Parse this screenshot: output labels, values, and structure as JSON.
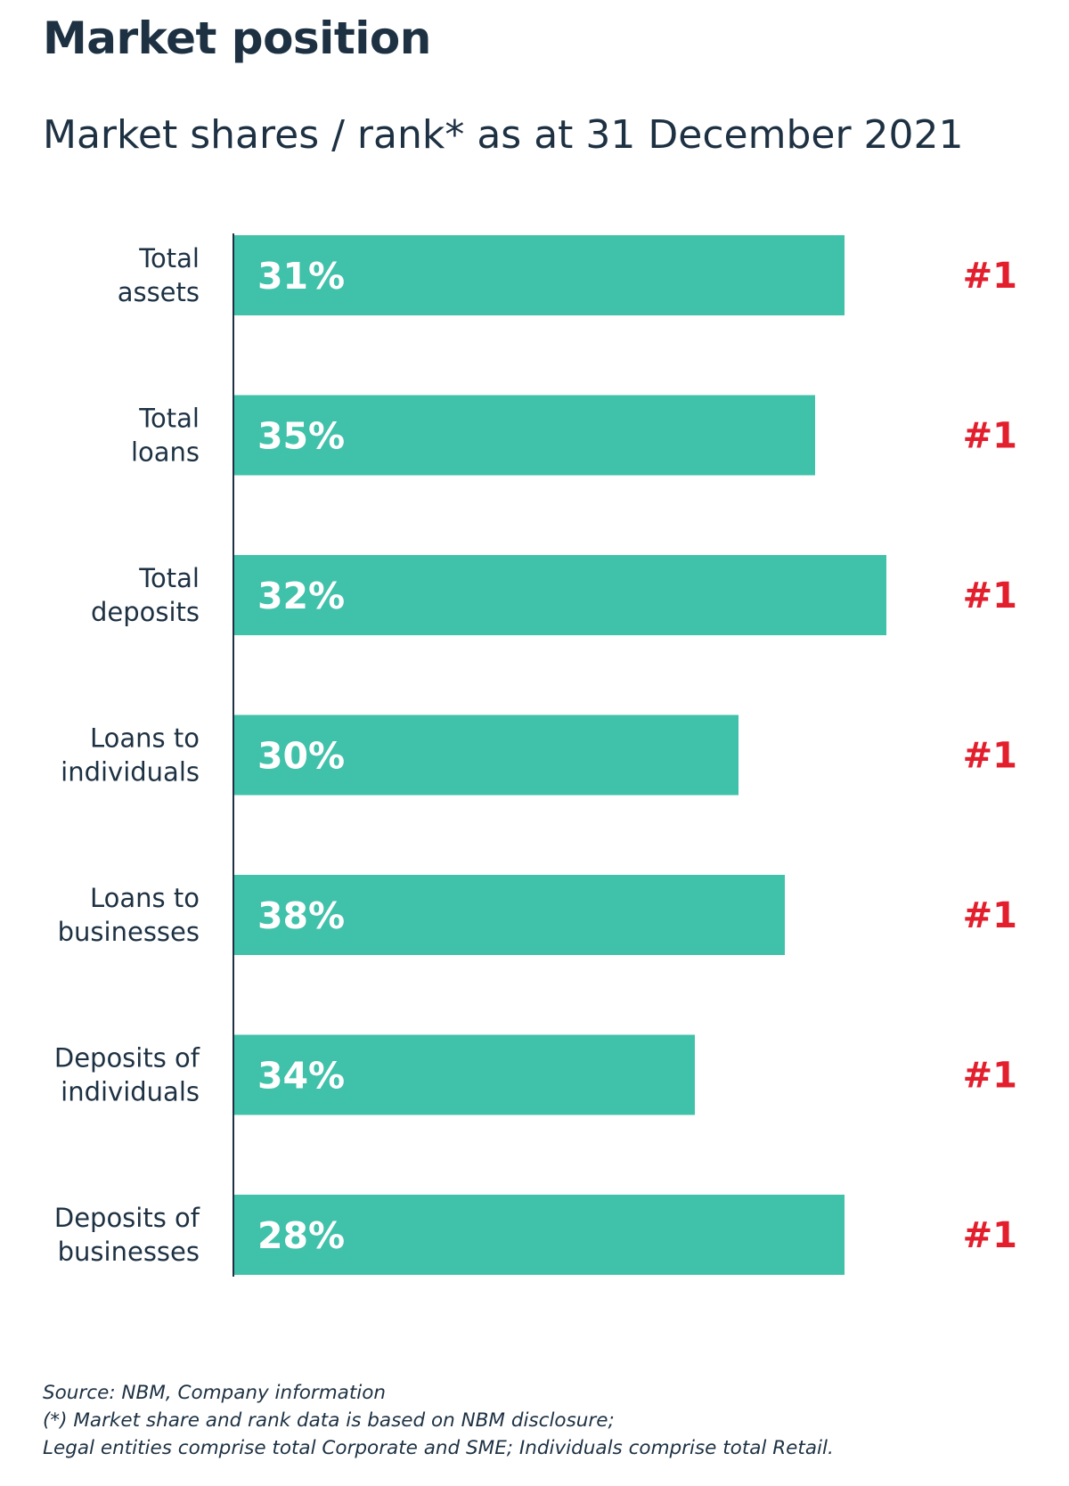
{
  "header": {
    "title": "Market position",
    "subtitle": "Market shares / rank* as at 31 December 2021"
  },
  "chart_data": {
    "type": "bar",
    "orientation": "horizontal",
    "categories": [
      [
        "Total",
        "assets"
      ],
      [
        "Total",
        "loans"
      ],
      [
        "Total",
        "deposits"
      ],
      [
        "Loans to",
        "individuals"
      ],
      [
        "Loans to",
        "businesses"
      ],
      [
        "Deposits of",
        "individuals"
      ],
      [
        "Deposits of",
        "businesses"
      ]
    ],
    "values": [
      31,
      35,
      32,
      30,
      38,
      34,
      28
    ],
    "value_labels": [
      "31%",
      "35%",
      "32%",
      "30%",
      "38%",
      "34%",
      "28%"
    ],
    "ranks": [
      "#1",
      "#1",
      "#1",
      "#1",
      "#1",
      "#1",
      "#1"
    ],
    "bar_color": "#40c1aa",
    "rank_color": "#e31e2d",
    "axis_line_color": "#1d3143",
    "grid": false,
    "legend": false
  },
  "footnotes": [
    "Source: NBM, Company information",
    "(*) Market share and rank  data is based on NBM disclosure;",
    "Legal entities comprise total Corporate and SME; Individuals comprise total Retail."
  ]
}
